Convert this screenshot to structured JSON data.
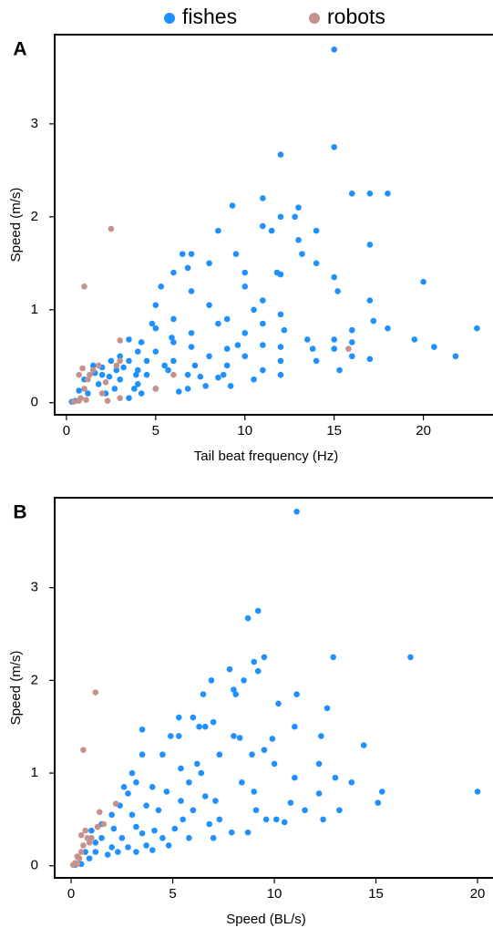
{
  "chart_data": [
    {
      "type": "scatter",
      "panel_label": "A",
      "x_label": "Tail beat frequency (Hz)",
      "y_label": "Speed (m/s)",
      "xlim": [
        -0.66,
        23.9
      ],
      "ylim": [
        -0.13,
        3.96
      ],
      "xticks": [
        0,
        5,
        10,
        15,
        20
      ],
      "yticks": [
        0,
        1,
        2,
        3
      ],
      "series": [
        {
          "name": "fishes",
          "color": "#1e90ff",
          "x": [
            15,
            15,
            12,
            16,
            17,
            18,
            9.3,
            11,
            13,
            12.8,
            12,
            11,
            11.5,
            8.5,
            14,
            13,
            17,
            6.5,
            7,
            9.5,
            13.2,
            6.8,
            8,
            10,
            11.8,
            14,
            12,
            6,
            15,
            20,
            10,
            5.3,
            15.2,
            7,
            11,
            17,
            5,
            8,
            10.5,
            12,
            6,
            9,
            4.8,
            8.5,
            11,
            17.2,
            5,
            16,
            18,
            23,
            7,
            10,
            12.2,
            19.5,
            5.9,
            6,
            3.5,
            13.5,
            15,
            16,
            4.2,
            9.6,
            11,
            20.6,
            7,
            9,
            12,
            13.8,
            15,
            4,
            5,
            8,
            10,
            16,
            21.8,
            17,
            14,
            3.5,
            4.5,
            6,
            7.2,
            9,
            12,
            15.3,
            11,
            2.5,
            5.5,
            8.5,
            10.5,
            12,
            9.2,
            7.8,
            6.3,
            6.8,
            5,
            4,
            3,
            2,
            1.5,
            2.8,
            3.2,
            1.8,
            2.2,
            3.5,
            4.2,
            2.7,
            3.9,
            4.5,
            1.2,
            0.7,
            0.3,
            0.5,
            2,
            2.4,
            3,
            4,
            5.7,
            6.8,
            7.5,
            8.8,
            1.6,
            1,
            3.8
          ],
          "y": [
            3.8,
            2.75,
            2.67,
            2.25,
            2.25,
            2.25,
            2.12,
            2.2,
            2.1,
            2.0,
            2.0,
            1.9,
            1.85,
            1.85,
            1.85,
            1.75,
            1.7,
            1.6,
            1.6,
            1.6,
            1.6,
            1.45,
            1.5,
            1.4,
            1.4,
            1.5,
            1.38,
            1.4,
            1.35,
            1.3,
            1.25,
            1.25,
            1.2,
            1.2,
            1.1,
            1.1,
            1.05,
            1.05,
            1.0,
            0.95,
            0.9,
            0.9,
            0.85,
            0.85,
            0.85,
            0.88,
            0.8,
            0.78,
            0.8,
            0.8,
            0.75,
            0.75,
            0.78,
            0.68,
            0.7,
            0.65,
            0.68,
            0.68,
            0.68,
            0.65,
            0.65,
            0.62,
            0.62,
            0.6,
            0.6,
            0.58,
            0.6,
            0.58,
            0.58,
            0.55,
            0.55,
            0.5,
            0.5,
            0.5,
            0.5,
            0.47,
            0.45,
            0.45,
            0.45,
            0.45,
            0.4,
            0.4,
            0.45,
            0.35,
            0.35,
            0.45,
            0.4,
            0.27,
            0.25,
            0.3,
            0.18,
            0.18,
            0.12,
            0.15,
            0.15,
            0.2,
            0.25,
            0.3,
            0.4,
            0.35,
            0.38,
            0.2,
            0.1,
            0.05,
            0.1,
            0.15,
            0.3,
            0.3,
            0.1,
            0.13,
            0.01,
            0.02,
            0.38,
            0.28,
            0.5,
            0.35,
            0.35,
            0.3,
            0.28,
            0.3,
            0.32,
            0.25,
            0.15
          ]
        },
        {
          "name": "robots",
          "color": "#c4918b",
          "x": [
            2.5,
            1,
            3,
            3,
            15.8,
            2.8,
            1.8,
            0.9,
            1.5,
            0.7,
            1.3,
            6,
            1.2,
            2.2,
            1,
            5,
            2,
            0.8,
            1.1,
            0.7,
            3,
            2.3,
            0.4
          ],
          "y": [
            1.87,
            1.25,
            0.67,
            0.45,
            0.58,
            0.4,
            0.4,
            0.37,
            0.35,
            0.3,
            0.3,
            0.3,
            0.25,
            0.22,
            0.15,
            0.15,
            0.1,
            0.05,
            0.03,
            0.02,
            0.05,
            0.02,
            0.01
          ]
        }
      ]
    },
    {
      "type": "scatter",
      "panel_label": "B",
      "x_label": "Speed (BL/s)",
      "y_label": "Speed (m/s)",
      "xlim": [
        -0.81,
        20.76
      ],
      "ylim": [
        -0.13,
        3.97
      ],
      "xticks": [
        0,
        5,
        10,
        15,
        20
      ],
      "yticks": [
        0,
        1,
        2,
        3
      ],
      "series": [
        {
          "color": "#1e90ff",
          "x": [
            11.1,
            9.2,
            8.7,
            12.9,
            16.7,
            9.5,
            9,
            9.2,
            7.8,
            6.9,
            8.5,
            6.5,
            8,
            8.1,
            10.2,
            11.1,
            12.6,
            5.3,
            6,
            6.6,
            6.3,
            7,
            12.3,
            3.5,
            4.9,
            5.3,
            8,
            8.3,
            9.9,
            14.4,
            3.5,
            4.5,
            6.2,
            9.5,
            11,
            7.3,
            8.9,
            10,
            12.2,
            5.4,
            6.4,
            3,
            5.8,
            3.2,
            8.4,
            11,
            13,
            2.6,
            4,
            9,
            12.2,
            13.8,
            15.3,
            20,
            2.8,
            4.7,
            6.6,
            5.4,
            7.1,
            10.8,
            15.1,
            13.2,
            11.5,
            9.1,
            2.4,
            3.7,
            4.3,
            6,
            3,
            2,
            1.5,
            5.5,
            7.3,
            9.6,
            10.1,
            12.4,
            10.5,
            1,
            2.1,
            3.2,
            4.1,
            5.1,
            6.8,
            7.9,
            8.7,
            1.5,
            2.5,
            3.5,
            4.5,
            5.8,
            7,
            1.2,
            2,
            2.8,
            3.7,
            4.8,
            2.3,
            3.2,
            4,
            1.2,
            0.7,
            1.8,
            0.9,
            0.2,
            0.5
          ],
          "y": [
            3.82,
            2.75,
            2.67,
            2.25,
            2.25,
            2.25,
            2.2,
            2.1,
            2.12,
            2.0,
            2.0,
            1.85,
            1.9,
            1.85,
            1.75,
            1.85,
            1.7,
            1.6,
            1.6,
            1.5,
            1.5,
            1.55,
            1.4,
            1.47,
            1.4,
            1.4,
            1.4,
            1.38,
            1.37,
            1.3,
            1.2,
            1.2,
            1.1,
            1.25,
            1.5,
            1.2,
            1.2,
            1.1,
            1.1,
            1.05,
            1.0,
            1.0,
            0.9,
            0.9,
            0.9,
            0.95,
            0.95,
            0.85,
            0.85,
            0.8,
            0.78,
            0.9,
            0.8,
            0.8,
            0.78,
            0.8,
            0.75,
            0.7,
            0.7,
            0.68,
            0.68,
            0.6,
            0.6,
            0.6,
            0.65,
            0.65,
            0.6,
            0.6,
            0.55,
            0.55,
            0.45,
            0.5,
            0.5,
            0.5,
            0.5,
            0.5,
            0.47,
            0.38,
            0.4,
            0.42,
            0.38,
            0.4,
            0.45,
            0.36,
            0.36,
            0.3,
            0.3,
            0.35,
            0.3,
            0.3,
            0.3,
            0.25,
            0.2,
            0.2,
            0.22,
            0.22,
            0.15,
            0.15,
            0.17,
            0.15,
            0.15,
            0.12,
            0.08,
            0.01,
            0.02
          ]
        },
        {
          "color": "#c4918b",
          "x": [
            1.2,
            0.6,
            2.2,
            1.4,
            1.6,
            1.3,
            0.7,
            0.5,
            1,
            0.8,
            0.9,
            0.6,
            0.5,
            0.3,
            0.4,
            0.2,
            0.1,
            0.3
          ],
          "y": [
            1.87,
            1.25,
            0.67,
            0.58,
            0.45,
            0.42,
            0.38,
            0.33,
            0.3,
            0.3,
            0.25,
            0.22,
            0.15,
            0.1,
            0.08,
            0.03,
            0.01,
            0.02
          ]
        }
      ]
    }
  ]
}
